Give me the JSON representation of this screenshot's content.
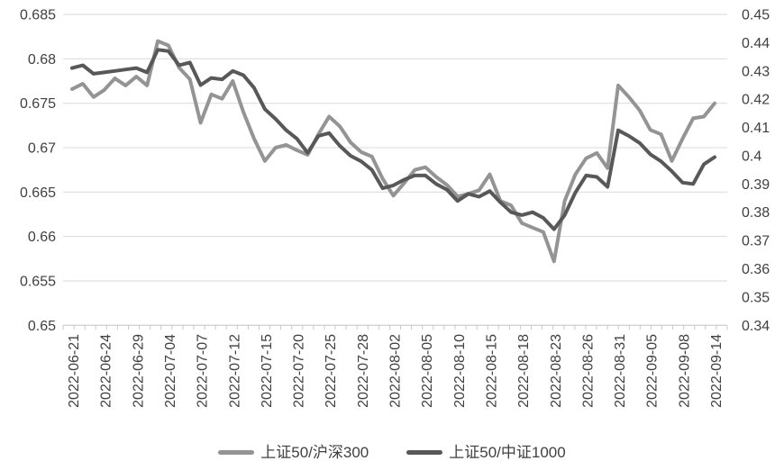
{
  "chart_data": {
    "type": "line",
    "title": "",
    "xlabel": "",
    "ylabel": "",
    "grid": true,
    "legend_position": "bottom",
    "x": [
      "2022-06-21",
      "2022-06-22",
      "2022-06-23",
      "2022-06-24",
      "2022-06-27",
      "2022-06-28",
      "2022-06-29",
      "2022-06-30",
      "2022-07-01",
      "2022-07-04",
      "2022-07-05",
      "2022-07-06",
      "2022-07-07",
      "2022-07-08",
      "2022-07-11",
      "2022-07-12",
      "2022-07-13",
      "2022-07-14",
      "2022-07-15",
      "2022-07-18",
      "2022-07-19",
      "2022-07-20",
      "2022-07-21",
      "2022-07-22",
      "2022-07-25",
      "2022-07-26",
      "2022-07-27",
      "2022-07-28",
      "2022-07-29",
      "2022-08-01",
      "2022-08-02",
      "2022-08-03",
      "2022-08-04",
      "2022-08-05",
      "2022-08-08",
      "2022-08-09",
      "2022-08-10",
      "2022-08-11",
      "2022-08-12",
      "2022-08-15",
      "2022-08-16",
      "2022-08-17",
      "2022-08-18",
      "2022-08-19",
      "2022-08-22",
      "2022-08-23",
      "2022-08-24",
      "2022-08-25",
      "2022-08-26",
      "2022-08-29",
      "2022-08-30",
      "2022-08-31",
      "2022-09-01",
      "2022-09-02",
      "2022-09-05",
      "2022-09-06",
      "2022-09-07",
      "2022-09-08",
      "2022-09-09",
      "2022-09-13",
      "2022-09-14"
    ],
    "x_tick_labels": [
      "2022-06-21",
      "2022-06-24",
      "2022-06-29",
      "2022-07-04",
      "2022-07-07",
      "2022-07-12",
      "2022-07-15",
      "2022-07-20",
      "2022-07-25",
      "2022-07-28",
      "2022-08-02",
      "2022-08-05",
      "2022-08-10",
      "2022-08-15",
      "2022-08-18",
      "2022-08-23",
      "2022-08-26",
      "2022-08-31",
      "2022-09-05",
      "2022-09-08",
      "2022-09-14"
    ],
    "x_label_every_n_points": 3,
    "series": [
      {
        "name": "上证50/沪深300",
        "axis": "left",
        "color": "#949494",
        "values": [
          0.6766,
          0.6772,
          0.6757,
          0.6765,
          0.6778,
          0.677,
          0.678,
          0.677,
          0.682,
          0.6815,
          0.679,
          0.6777,
          0.6728,
          0.676,
          0.6755,
          0.6775,
          0.674,
          0.671,
          0.6685,
          0.67,
          0.6703,
          0.6697,
          0.6692,
          0.6715,
          0.6735,
          0.6724,
          0.6706,
          0.6695,
          0.669,
          0.6665,
          0.6646,
          0.666,
          0.6675,
          0.6678,
          0.6667,
          0.6658,
          0.6645,
          0.6648,
          0.6652,
          0.667,
          0.664,
          0.6635,
          0.6615,
          0.661,
          0.6605,
          0.6572,
          0.664,
          0.667,
          0.6688,
          0.6694,
          0.6677,
          0.677,
          0.6757,
          0.6742,
          0.672,
          0.6715,
          0.6685,
          0.671,
          0.6733,
          0.6735,
          0.675
        ]
      },
      {
        "name": "上证50/中证1000",
        "axis": "right",
        "color": "#585858",
        "values": [
          0.431,
          0.432,
          0.429,
          0.4295,
          0.43,
          0.4305,
          0.431,
          0.4295,
          0.4375,
          0.437,
          0.432,
          0.433,
          0.425,
          0.4275,
          0.427,
          0.43,
          0.4285,
          0.424,
          0.4165,
          0.413,
          0.409,
          0.406,
          0.401,
          0.407,
          0.408,
          0.4035,
          0.4,
          0.398,
          0.395,
          0.3885,
          0.3895,
          0.3915,
          0.393,
          0.393,
          0.39,
          0.388,
          0.384,
          0.3865,
          0.3855,
          0.3875,
          0.3835,
          0.38,
          0.379,
          0.38,
          0.378,
          0.374,
          0.379,
          0.387,
          0.393,
          0.3925,
          0.389,
          0.409,
          0.407,
          0.4045,
          0.4005,
          0.398,
          0.3945,
          0.3905,
          0.39,
          0.397,
          0.3995
        ]
      }
    ],
    "left_axis": {
      "min": 0.65,
      "max": 0.685,
      "step": 0.005,
      "tick_labels": [
        "0.685",
        "0.68",
        "0.675",
        "0.67",
        "0.665",
        "0.66",
        "0.655",
        "0.65"
      ]
    },
    "right_axis": {
      "min": 0.34,
      "max": 0.45,
      "step": 0.01,
      "tick_labels": [
        "0.45",
        "0.44",
        "0.43",
        "0.42",
        "0.41",
        "0.4",
        "0.39",
        "0.38",
        "0.37",
        "0.36",
        "0.35",
        "0.34"
      ]
    },
    "style": {
      "gridline_color": "#d9d9d9",
      "axis_line_color": "#c9c9c9",
      "label_color": "#404040",
      "background_color": "#ffffff",
      "line_width": 4
    }
  },
  "legend": {
    "item1_label": "上证50/沪深300",
    "item2_label": "上证50/中证1000"
  }
}
